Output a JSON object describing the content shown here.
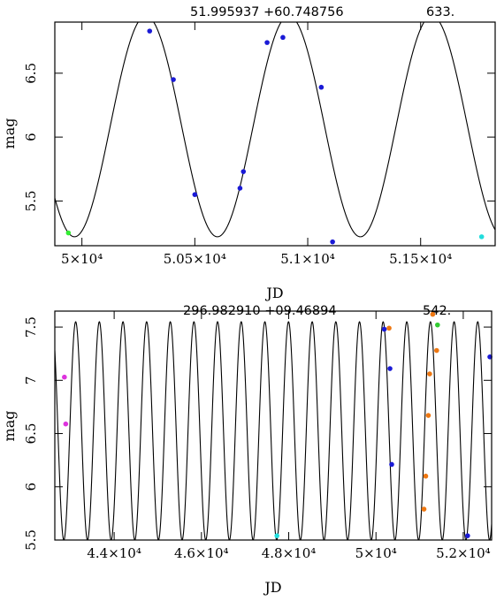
{
  "chart_data": [
    {
      "type": "scatter",
      "header": {
        "coords": "51.995937 +60.748756",
        "period": "633."
      },
      "xlabel": "JD",
      "ylabel": "mag",
      "xlim": [
        49880,
        51830
      ],
      "ylim": [
        6.9,
        5.15
      ],
      "x_ticks": [
        {
          "value": 50000,
          "label": "5×10⁴"
        },
        {
          "value": 50500,
          "label": "5.05×10⁴"
        },
        {
          "value": 51000,
          "label": "5.1×10⁴"
        },
        {
          "value": 51500,
          "label": "5.15×10⁴"
        }
      ],
      "y_ticks": [
        {
          "value": 5.5,
          "label": "5.5"
        },
        {
          "value": 6,
          "label": "6"
        },
        {
          "value": 6.5,
          "label": "6.5"
        }
      ],
      "model": {
        "period": 633,
        "bright_mag": 5.22,
        "faint_mag": 6.95,
        "max_epoch": 50600
      },
      "points": [
        {
          "x": 49940,
          "y": 5.25,
          "color": "#33ee33"
        },
        {
          "x": 50300,
          "y": 6.83,
          "color": "#1a1ad6"
        },
        {
          "x": 50405,
          "y": 6.45,
          "color": "#1a1ad6"
        },
        {
          "x": 50500,
          "y": 5.55,
          "color": "#1a1ad6"
        },
        {
          "x": 50700,
          "y": 5.6,
          "color": "#1a1ad6"
        },
        {
          "x": 50715,
          "y": 5.73,
          "color": "#1a1ad6"
        },
        {
          "x": 50820,
          "y": 6.74,
          "color": "#1a1ad6"
        },
        {
          "x": 50890,
          "y": 6.78,
          "color": "#1a1ad6"
        },
        {
          "x": 51060,
          "y": 6.39,
          "color": "#1a1ad6"
        },
        {
          "x": 51110,
          "y": 5.18,
          "color": "#1a1ad6"
        },
        {
          "x": 51770,
          "y": 5.22,
          "color": "#22dddd"
        }
      ]
    },
    {
      "type": "scatter",
      "header": {
        "coords": "296.982910 +09.46894",
        "period": "542."
      },
      "xlabel": "JD",
      "ylabel": "mag",
      "xlim": [
        42640,
        52650
      ],
      "ylim": [
        7.65,
        5.5
      ],
      "x_ticks": [
        {
          "value": 44000,
          "label": "4.4×10⁴"
        },
        {
          "value": 46000,
          "label": "4.6×10⁴"
        },
        {
          "value": 48000,
          "label": "4.8×10⁴"
        },
        {
          "value": 50000,
          "label": "5×10⁴"
        },
        {
          "value": 52000,
          "label": "5.2×10⁴"
        }
      ],
      "y_ticks": [
        {
          "value": 5.5,
          "label": "5.5"
        },
        {
          "value": 6,
          "label": "6"
        },
        {
          "value": 6.5,
          "label": "6.5"
        },
        {
          "value": 7,
          "label": "7"
        },
        {
          "value": 7.5,
          "label": "7.5"
        }
      ],
      "model": {
        "period": 542,
        "bright_mag": 5.5,
        "faint_mag": 7.55,
        "max_epoch": 47725
      },
      "points": [
        {
          "x": 42860,
          "y": 7.03,
          "color": "#dd33dd"
        },
        {
          "x": 42890,
          "y": 6.59,
          "color": "#dd33dd"
        },
        {
          "x": 47730,
          "y": 5.54,
          "color": "#22dddd"
        },
        {
          "x": 50190,
          "y": 7.48,
          "color": "#1a1ad6"
        },
        {
          "x": 50320,
          "y": 7.11,
          "color": "#1a1ad6"
        },
        {
          "x": 50360,
          "y": 6.21,
          "color": "#1a1ad6"
        },
        {
          "x": 50300,
          "y": 7.49,
          "color": "#ee7711"
        },
        {
          "x": 51100,
          "y": 5.79,
          "color": "#ee7711"
        },
        {
          "x": 51140,
          "y": 6.1,
          "color": "#ee7711"
        },
        {
          "x": 51200,
          "y": 6.67,
          "color": "#ee7711"
        },
        {
          "x": 51230,
          "y": 7.06,
          "color": "#ee7711"
        },
        {
          "x": 51300,
          "y": 7.62,
          "color": "#ee7711"
        },
        {
          "x": 51390,
          "y": 7.28,
          "color": "#ee7711"
        },
        {
          "x": 51410,
          "y": 7.52,
          "color": "#33cc33"
        },
        {
          "x": 52100,
          "y": 5.54,
          "color": "#1a1ad6"
        },
        {
          "x": 52610,
          "y": 7.22,
          "color": "#1a1ad6"
        }
      ]
    }
  ]
}
